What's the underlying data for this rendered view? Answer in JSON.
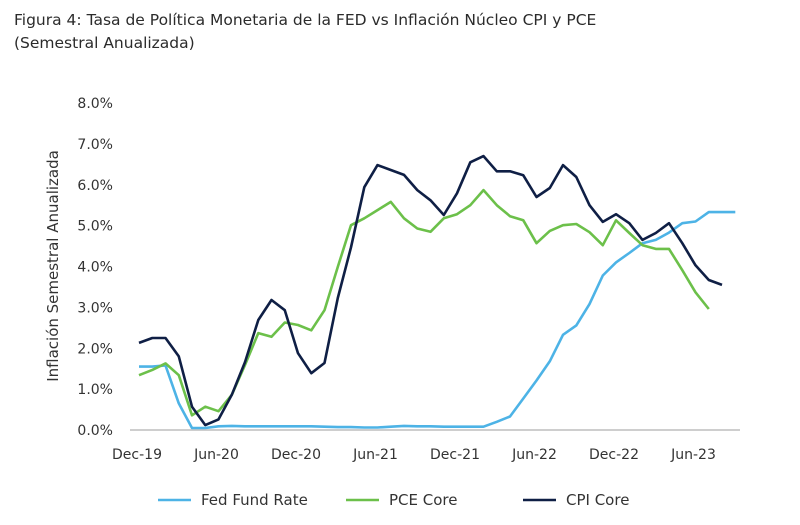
{
  "chart_data": {
    "type": "line",
    "title_line1": "Figura 4: Tasa de Política Monetaria de la FED vs Inflación Núcleo CPI y PCE",
    "title_line2": "(Semestral Anualizada)",
    "xlabel": "",
    "ylabel": "Inflación Semestral Anualizada",
    "ylim": [
      0,
      8
    ],
    "yticks": [
      "0.0%",
      "1.0%",
      "2.0%",
      "3.0%",
      "4.0%",
      "5.0%",
      "6.0%",
      "7.0%",
      "8.0%"
    ],
    "xticks": [
      "Dec-19",
      "Jun-20",
      "Dec-20",
      "Jun-21",
      "Dec-21",
      "Jun-22",
      "Dec-22",
      "Jun-23"
    ],
    "x_start": "Dec-19",
    "x_frequency": "monthly",
    "grid": false,
    "legend_position": "bottom",
    "series": [
      {
        "name": "Fed Fund Rate",
        "color": "#4DB3E6",
        "values": [
          1.55,
          1.55,
          1.58,
          0.65,
          0.05,
          0.05,
          0.09,
          0.1,
          0.09,
          0.09,
          0.09,
          0.09,
          0.09,
          0.09,
          0.08,
          0.07,
          0.07,
          0.06,
          0.06,
          0.08,
          0.1,
          0.09,
          0.09,
          0.08,
          0.08,
          0.08,
          0.08,
          0.2,
          0.33,
          0.77,
          1.21,
          1.68,
          2.33,
          2.56,
          3.08,
          3.78,
          4.1,
          4.33,
          4.57,
          4.65,
          4.83,
          5.06,
          5.1,
          5.33,
          5.33,
          5.33
        ]
      },
      {
        "name": "PCE Core",
        "color": "#6CC04A",
        "values": [
          1.34,
          1.47,
          1.63,
          1.34,
          0.36,
          0.57,
          0.46,
          0.86,
          1.59,
          2.37,
          2.28,
          2.63,
          2.57,
          2.44,
          2.93,
          3.99,
          5.01,
          5.18,
          5.38,
          5.58,
          5.18,
          4.93,
          4.85,
          5.18,
          5.28,
          5.5,
          5.87,
          5.5,
          5.23,
          5.13,
          4.57,
          4.87,
          5.01,
          5.04,
          4.84,
          4.52,
          5.13,
          4.82,
          4.52,
          4.43,
          4.43,
          3.91,
          3.37,
          2.96
        ]
      },
      {
        "name": "CPI Core",
        "color": "#0F1F45",
        "values": [
          2.13,
          2.25,
          2.25,
          1.8,
          0.57,
          0.12,
          0.26,
          0.86,
          1.66,
          2.69,
          3.18,
          2.93,
          1.88,
          1.39,
          1.64,
          3.23,
          4.47,
          5.94,
          6.48,
          6.36,
          6.24,
          5.87,
          5.62,
          5.26,
          5.79,
          6.55,
          6.7,
          6.33,
          6.33,
          6.23,
          5.7,
          5.92,
          6.48,
          6.19,
          5.5,
          5.09,
          5.28,
          5.06,
          4.65,
          4.82,
          5.06,
          4.57,
          4.03,
          3.67,
          3.55
        ]
      }
    ]
  }
}
